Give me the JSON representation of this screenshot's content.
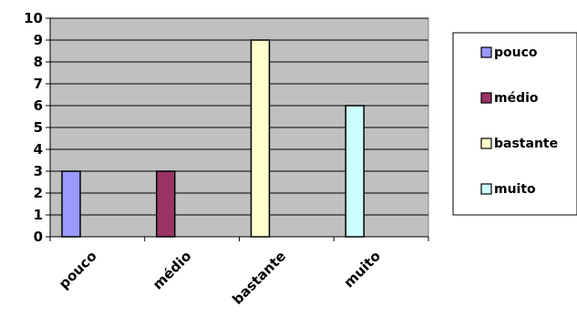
{
  "chart_data": {
    "type": "bar",
    "categories": [
      "pouco",
      "médio",
      "bastante",
      "muito"
    ],
    "values": [
      3,
      3,
      9,
      6
    ],
    "colors": [
      "#9999ff",
      "#993366",
      "#ffffcc",
      "#ccffff"
    ],
    "plot_background": "#c0c0c0",
    "ylim": [
      0,
      10
    ],
    "yticks": [
      0,
      1,
      2,
      3,
      4,
      5,
      6,
      7,
      8,
      9,
      10
    ],
    "grid": true,
    "legend_position": "right",
    "legend": [
      "pouco",
      "médio",
      "bastante",
      "muito"
    ]
  }
}
